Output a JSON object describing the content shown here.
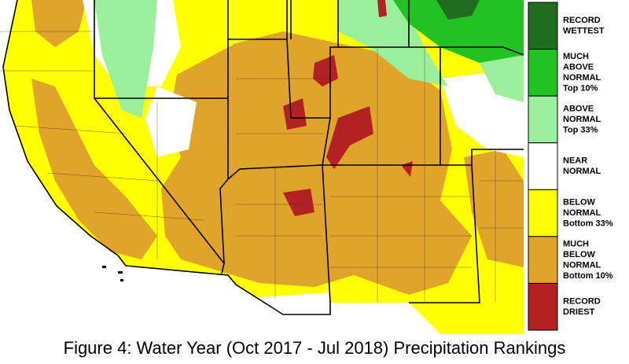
{
  "legend": {
    "items": [
      {
        "lines": [
          "RECORD",
          "WETTEST"
        ],
        "color": "#1f6e1f"
      },
      {
        "lines": [
          "MUCH",
          "ABOVE",
          "NORMAL",
          "Top 10%"
        ],
        "color": "#22c222"
      },
      {
        "lines": [
          "ABOVE",
          "NORMAL",
          "Top 33%"
        ],
        "color": "#9bef9b"
      },
      {
        "lines": [
          "NEAR",
          "NORMAL"
        ],
        "color": "#ffffff"
      },
      {
        "lines": [
          "BELOW",
          "NORMAL",
          "Bottom 33%"
        ],
        "color": "#ffff00"
      },
      {
        "lines": [
          "MUCH",
          "BELOW",
          "NORMAL",
          "Bottom 10%"
        ],
        "color": "#e0a42a"
      },
      {
        "lines": [
          "RECORD",
          "DRIEST"
        ],
        "color": "#b32222"
      }
    ]
  },
  "caption": "Figure 4: Water Year (Oct 2017 - Jul 2018) Precipitation Rankings"
}
